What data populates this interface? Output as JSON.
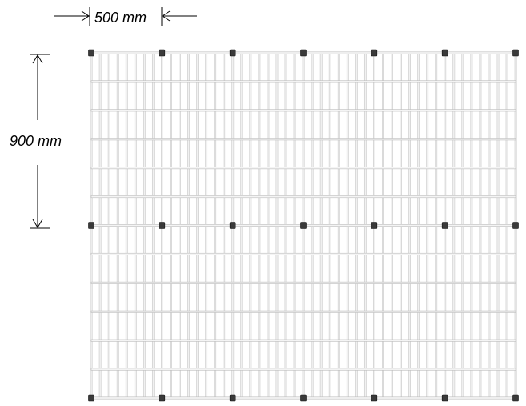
{
  "dimensions": {
    "horizontal_label": "500 mm",
    "vertical_label": "900 mm"
  },
  "grid": {
    "post_columns": 7,
    "post_rows": 3,
    "vertical_wires_per_bay": 8,
    "horizontal_wires_per_bay": 6
  },
  "colors": {
    "wire": "#c8c8c8",
    "wire_bar": "#bdbdbd",
    "post": "#3a3a3a",
    "dimension": "#000000"
  }
}
